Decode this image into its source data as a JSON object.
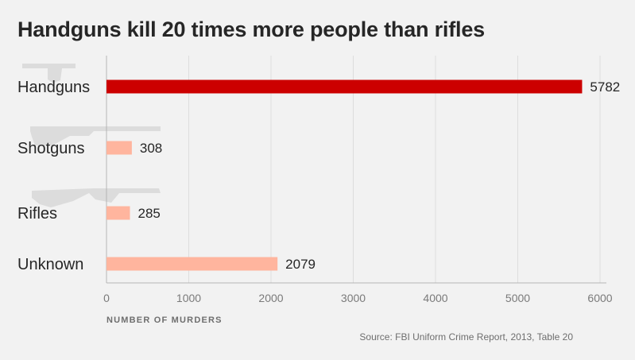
{
  "title": "Handguns kill 20 times more people than rifles",
  "xlabel": "NUMBER OF MURDERS",
  "source": "Source: FBI Uniform Crime Report, 2013, Table 20",
  "colors": {
    "background": "#f2f2f2",
    "highlight_bar": "#cc0000",
    "other_bar": "#ffb59e",
    "grid": "#dddddd",
    "axis": "#b5b5b5",
    "silhouette": "#dcdcdc"
  },
  "chart_data": {
    "type": "bar",
    "orientation": "horizontal",
    "title": "Handguns kill 20 times more people than rifles",
    "xlabel": "NUMBER OF MURDERS",
    "categories": [
      "Handguns",
      "Shotguns",
      "Rifles",
      "Unknown"
    ],
    "values": [
      5782,
      308,
      285,
      2079
    ],
    "highlight": "Handguns",
    "xlim": [
      0,
      6000
    ],
    "xticks": [
      0,
      1000,
      2000,
      3000,
      4000,
      5000,
      6000
    ],
    "grid": true,
    "data_labels": true,
    "decorations": [
      "handgun-silhouette-icon",
      "shotgun-silhouette-icon",
      "rifle-silhouette-icon"
    ]
  }
}
